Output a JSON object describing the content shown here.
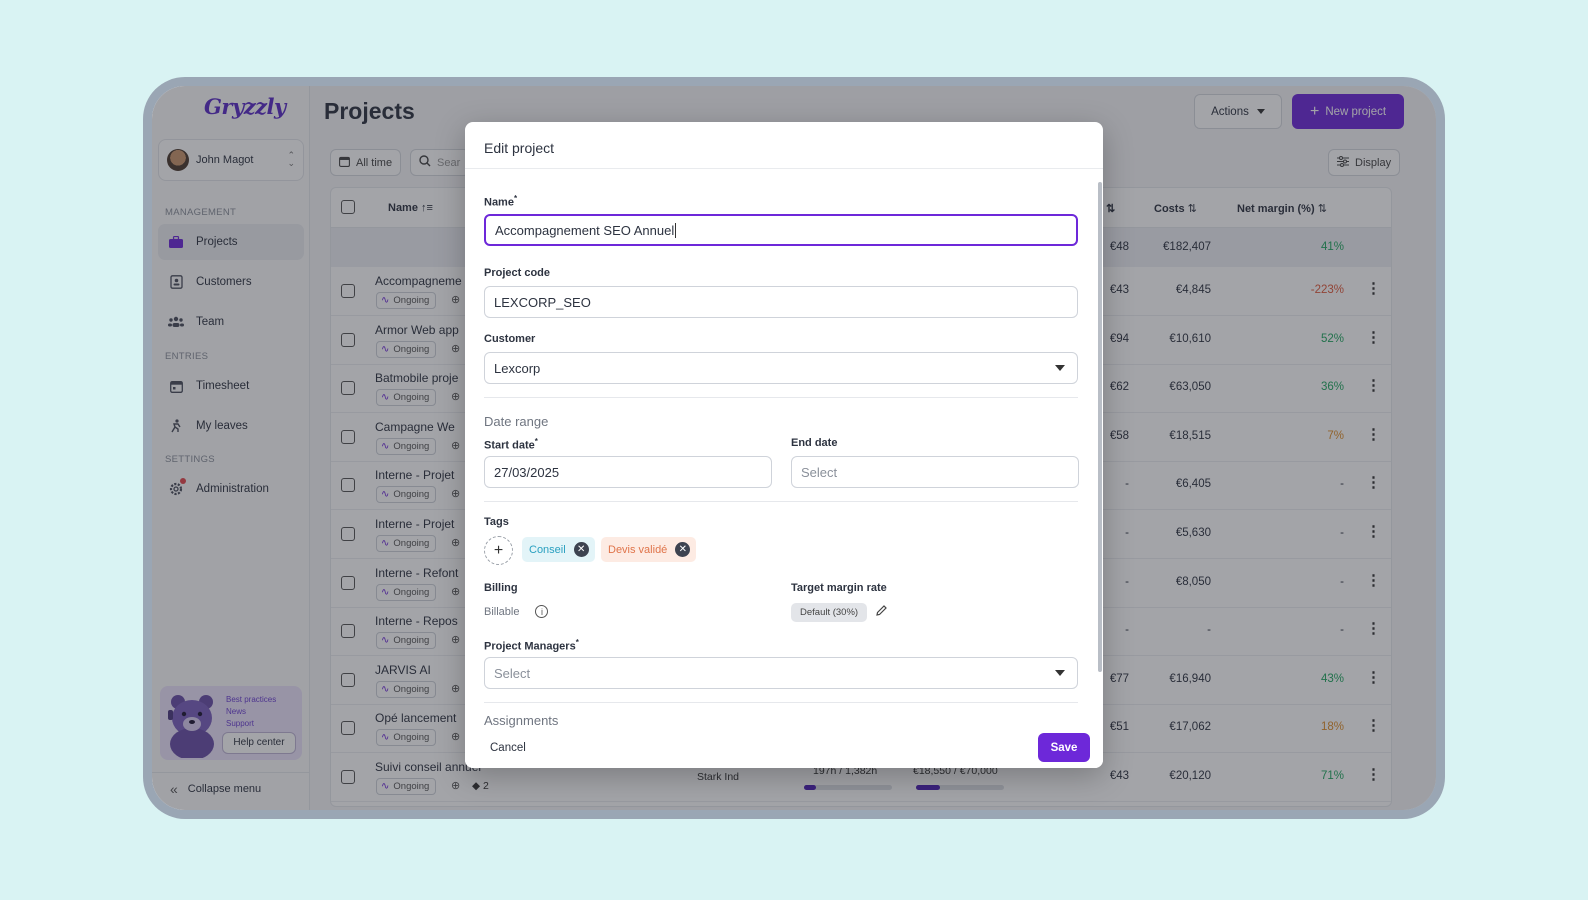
{
  "app": {
    "logo": "Gryzzly"
  },
  "sidebar": {
    "user_name": "John Magot",
    "sections": {
      "management": "MANAGEMENT",
      "entries": "ENTRIES",
      "settings": "SETTINGS"
    },
    "items": [
      {
        "label": "Projects",
        "icon": "briefcase-icon"
      },
      {
        "label": "Customers",
        "icon": "contacts-icon"
      },
      {
        "label": "Team",
        "icon": "team-icon"
      },
      {
        "label": "Timesheet",
        "icon": "calendar-icon"
      },
      {
        "label": "My leaves",
        "icon": "leave-icon"
      },
      {
        "label": "Administration",
        "icon": "gear-icon"
      }
    ],
    "help": {
      "links": [
        "Best practices",
        "News",
        "Support"
      ],
      "button": "Help center"
    },
    "collapse_label": "Collapse menu"
  },
  "header": {
    "title": "Projects",
    "actions_label": "Actions",
    "new_project_label": "New project"
  },
  "filters": {
    "all_time": "All time",
    "search_placeholder": "Sear",
    "display": "Display"
  },
  "table": {
    "columns": {
      "name": "Name",
      "costs": "Costs",
      "net_margin": "Net margin (%)"
    },
    "totals": {
      "col3": "€48",
      "costs": "€182,407",
      "margin": "41%"
    },
    "status": "Ongoing",
    "rows": [
      {
        "name": "Accompagneme",
        "col3": "€43",
        "costs": "€4,845",
        "margin": "-223%",
        "tone": "red"
      },
      {
        "name": "Armor Web app",
        "col3": "€94",
        "costs": "€10,610",
        "margin": "52%",
        "tone": "green"
      },
      {
        "name": "Batmobile proje",
        "col3": "€62",
        "costs": "€63,050",
        "margin": "36%",
        "tone": "green"
      },
      {
        "name": "Campagne We",
        "col3": "€58",
        "costs": "€18,515",
        "margin": "7%",
        "tone": "orange"
      },
      {
        "name": "Interne - Projet",
        "col3": "-",
        "costs": "€6,405",
        "margin": "-",
        "tone": ""
      },
      {
        "name": "Interne - Projet",
        "col3": "-",
        "costs": "€5,630",
        "margin": "-",
        "tone": ""
      },
      {
        "name": "Interne - Refont",
        "col3": "-",
        "costs": "€8,050",
        "margin": "-",
        "tone": ""
      },
      {
        "name": "Interne - Repos",
        "col3": "-",
        "costs": "-",
        "margin": "-",
        "tone": ""
      },
      {
        "name": "JARVIS AI",
        "col3": "€77",
        "costs": "€16,940",
        "margin": "43%",
        "tone": "green"
      },
      {
        "name": "Opé lancement",
        "col3": "€51",
        "costs": "€17,062",
        "margin": "18%",
        "tone": "orange"
      },
      {
        "name": "Suivi conseil annuel",
        "col3": "€43",
        "costs": "€20,120",
        "margin": "71%",
        "tone": "green"
      }
    ],
    "last_row_extra": {
      "customer": "Stark Ind",
      "time": "197h / 1,382h",
      "time_progress": 0.14,
      "budget": "€18,550 / €70,000",
      "budget_progress": 0.27,
      "tag_count": "2"
    }
  },
  "modal": {
    "title": "Edit project",
    "name_label": "Name",
    "name_value": "Accompagnement SEO Annuel",
    "code_label": "Project code",
    "code_value": "LEXCORP_SEO",
    "customer_label": "Customer",
    "customer_value": "Lexcorp",
    "date_range_title": "Date range",
    "start_label": "Start date",
    "start_value": "27/03/2025",
    "end_label": "End date",
    "end_placeholder": "Select",
    "tags_label": "Tags",
    "tags": [
      {
        "label": "Conseil",
        "bg": "#e3f4f8",
        "color": "#2aa0c0"
      },
      {
        "label": "Devis validé",
        "bg": "#fdebe3",
        "color": "#e0744a"
      }
    ],
    "billing_label": "Billing",
    "billing_value": "Billable",
    "target_label": "Target margin rate",
    "target_value": "Default (30%)",
    "managers_label": "Project Managers",
    "managers_placeholder": "Select",
    "assignments_title": "Assignments",
    "cancel_label": "Cancel",
    "save_label": "Save"
  },
  "colors": {
    "accent": "#6d28d9",
    "background": "#d9f3f3"
  }
}
